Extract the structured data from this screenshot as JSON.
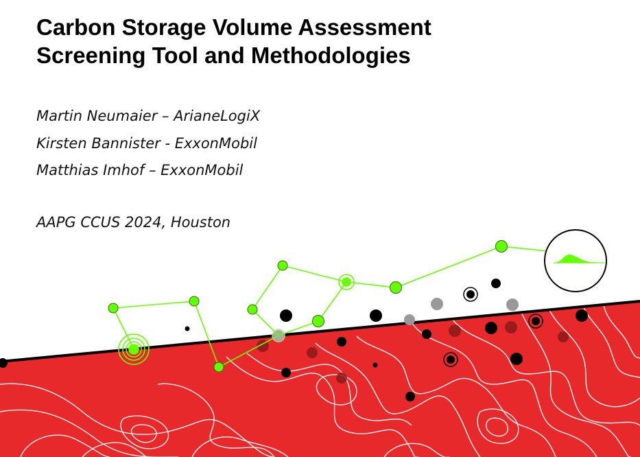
{
  "slide": {
    "title_lines": [
      "Carbon Storage Volume Assessment",
      "Screening Tool and Methodologies"
    ],
    "authors": [
      "Martin Neumaier – ArianeLogiX",
      "Kirsten Bannister - ExxonMobil",
      "Matthias Imhof – ExxonMobil"
    ],
    "event": "AAPG CCUS 2024, Houston"
  },
  "graphic": {
    "reservoir_color": "#e8292b",
    "contour_color": "#ffffff",
    "network_color": "#66ff00",
    "well_color": "#000000",
    "dim_well_color": "#999999",
    "subsurface_well_color": "#8b1a1a",
    "inset_icon": "distribution-curve-icon"
  }
}
